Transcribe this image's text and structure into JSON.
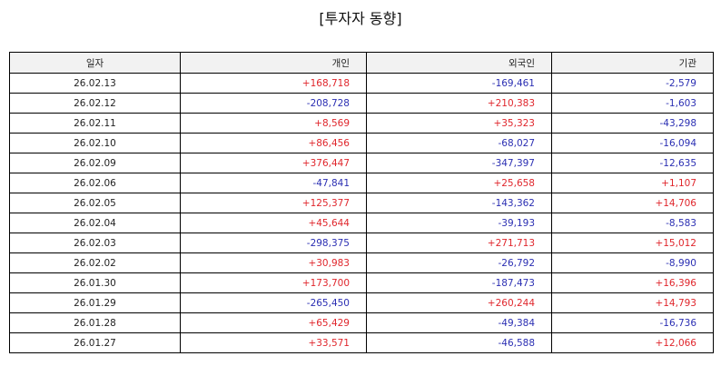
{
  "title": "[투자자 동향]",
  "colors": {
    "positive": "#e0262c",
    "negative": "#2b2fb3",
    "header_bg": "#f2f2f2"
  },
  "columns": [
    "일자",
    "개인",
    "외국인",
    "기관"
  ],
  "rows": [
    {
      "date": "26.02.13",
      "individual": "+168,718",
      "foreign": "-169,461",
      "institution": "-2,579"
    },
    {
      "date": "26.02.12",
      "individual": "-208,728",
      "foreign": "+210,383",
      "institution": "-1,603"
    },
    {
      "date": "26.02.11",
      "individual": "+8,569",
      "foreign": "+35,323",
      "institution": "-43,298"
    },
    {
      "date": "26.02.10",
      "individual": "+86,456",
      "foreign": "-68,027",
      "institution": "-16,094"
    },
    {
      "date": "26.02.09",
      "individual": "+376,447",
      "foreign": "-347,397",
      "institution": "-12,635"
    },
    {
      "date": "26.02.06",
      "individual": "-47,841",
      "foreign": "+25,658",
      "institution": "+1,107"
    },
    {
      "date": "26.02.05",
      "individual": "+125,377",
      "foreign": "-143,362",
      "institution": "+14,706"
    },
    {
      "date": "26.02.04",
      "individual": "+45,644",
      "foreign": "-39,193",
      "institution": "-8,583"
    },
    {
      "date": "26.02.03",
      "individual": "-298,375",
      "foreign": "+271,713",
      "institution": "+15,012"
    },
    {
      "date": "26.02.02",
      "individual": "+30,983",
      "foreign": "-26,792",
      "institution": "-8,990"
    },
    {
      "date": "26.01.30",
      "individual": "+173,700",
      "foreign": "-187,473",
      "institution": "+16,396"
    },
    {
      "date": "26.01.29",
      "individual": "-265,450",
      "foreign": "+260,244",
      "institution": "+14,793"
    },
    {
      "date": "26.01.28",
      "individual": "+65,429",
      "foreign": "-49,384",
      "institution": "-16,736"
    },
    {
      "date": "26.01.27",
      "individual": "+33,571",
      "foreign": "-46,588",
      "institution": "+12,066"
    }
  ]
}
